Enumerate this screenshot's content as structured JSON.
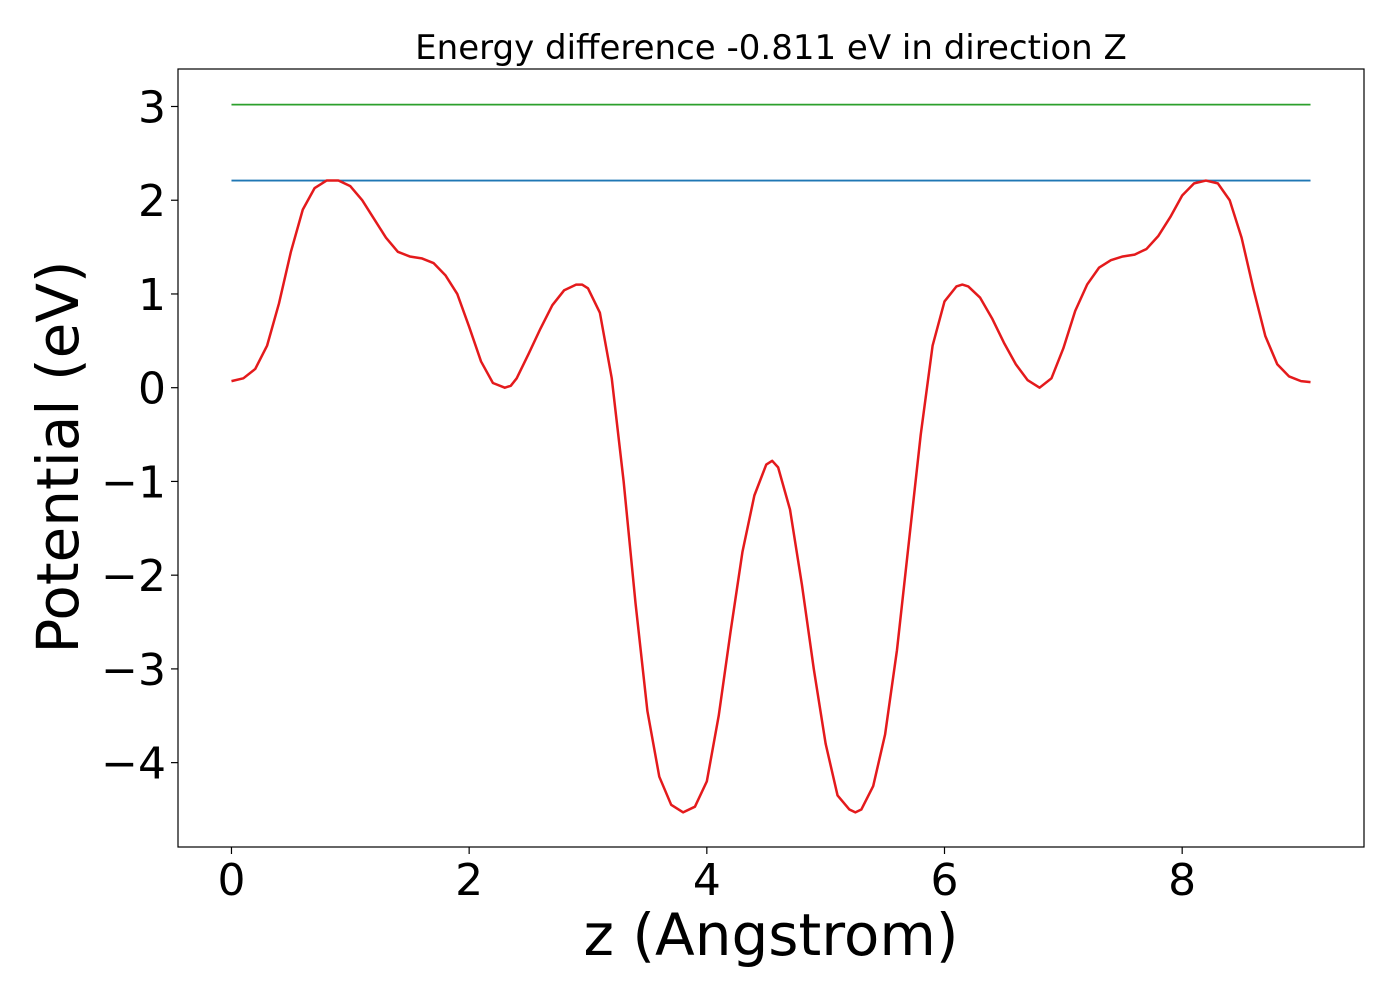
{
  "chart_data": {
    "type": "line",
    "title": "Energy difference -0.811 eV in direction Z",
    "xlabel": "z (Angstrom)",
    "ylabel": "Potential (eV)",
    "xlim": [
      -0.45,
      9.53
    ],
    "ylim": [
      -4.9,
      3.4
    ],
    "grid": false,
    "xticks": [
      0,
      2,
      4,
      6,
      8
    ],
    "yticks": [
      3,
      2,
      1,
      0,
      -1,
      -2,
      -3,
      -4
    ],
    "xtick_labels": [
      "0",
      "2",
      "4",
      "6",
      "8"
    ],
    "ytick_labels": [
      "3",
      "2",
      "1",
      "0",
      "−1",
      "−2",
      "−3",
      "−4"
    ],
    "series": [
      {
        "color": "#2ca02c",
        "x": [
          0,
          9.08
        ],
        "y": [
          3.02,
          3.02
        ]
      },
      {
        "color": "#1f77b4",
        "x": [
          0,
          9.08
        ],
        "y": [
          2.21,
          2.21
        ]
      },
      {
        "color": "#e41a1c",
        "x": [
          0,
          0.1,
          0.2,
          0.3,
          0.4,
          0.5,
          0.6,
          0.7,
          0.8,
          0.9,
          1.0,
          1.1,
          1.2,
          1.3,
          1.4,
          1.5,
          1.6,
          1.7,
          1.8,
          1.9,
          2.0,
          2.1,
          2.2,
          2.3,
          2.35,
          2.4,
          2.5,
          2.6,
          2.7,
          2.8,
          2.9,
          2.95,
          3.0,
          3.1,
          3.2,
          3.3,
          3.4,
          3.5,
          3.6,
          3.7,
          3.8,
          3.9,
          4.0,
          4.1,
          4.2,
          4.3,
          4.4,
          4.5,
          4.55,
          4.6,
          4.7,
          4.8,
          4.9,
          5.0,
          5.1,
          5.2,
          5.25,
          5.3,
          5.4,
          5.5,
          5.6,
          5.7,
          5.8,
          5.9,
          6.0,
          6.1,
          6.15,
          6.2,
          6.3,
          6.4,
          6.5,
          6.6,
          6.7,
          6.8,
          6.9,
          7.0,
          7.1,
          7.2,
          7.3,
          7.4,
          7.5,
          7.6,
          7.7,
          7.8,
          7.9,
          8.0,
          8.1,
          8.2,
          8.3,
          8.4,
          8.5,
          8.6,
          8.7,
          8.8,
          8.9,
          9.0,
          9.08
        ],
        "y": [
          0.07,
          0.1,
          0.2,
          0.45,
          0.9,
          1.45,
          1.9,
          2.13,
          2.21,
          2.21,
          2.15,
          2.0,
          1.8,
          1.6,
          1.45,
          1.4,
          1.38,
          1.33,
          1.2,
          1.0,
          0.65,
          0.28,
          0.05,
          0.0,
          0.02,
          0.1,
          0.36,
          0.63,
          0.88,
          1.04,
          1.1,
          1.1,
          1.06,
          0.8,
          0.1,
          -1.0,
          -2.3,
          -3.45,
          -4.15,
          -4.45,
          -4.53,
          -4.47,
          -4.2,
          -3.5,
          -2.6,
          -1.75,
          -1.15,
          -0.82,
          -0.78,
          -0.85,
          -1.3,
          -2.1,
          -3.0,
          -3.8,
          -4.35,
          -4.5,
          -4.53,
          -4.5,
          -4.25,
          -3.7,
          -2.8,
          -1.65,
          -0.5,
          0.45,
          0.92,
          1.08,
          1.1,
          1.08,
          0.96,
          0.74,
          0.48,
          0.25,
          0.08,
          0.0,
          0.1,
          0.42,
          0.82,
          1.1,
          1.28,
          1.36,
          1.4,
          1.42,
          1.48,
          1.62,
          1.82,
          2.05,
          2.18,
          2.21,
          2.18,
          2.0,
          1.6,
          1.05,
          0.55,
          0.25,
          0.12,
          0.07,
          0.06
        ]
      }
    ]
  }
}
